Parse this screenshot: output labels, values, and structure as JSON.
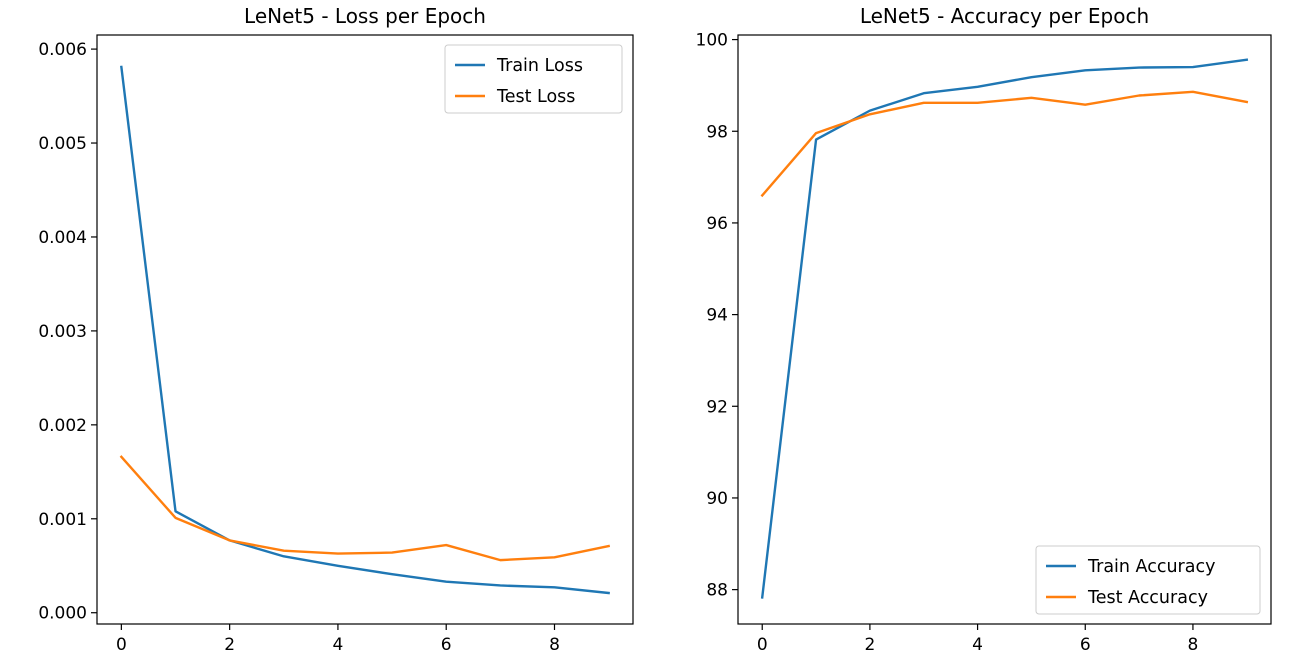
{
  "chart_data": [
    {
      "type": "line",
      "title": "LeNet5 - Loss per Epoch",
      "xlabel": "",
      "ylabel": "",
      "x": [
        0,
        1,
        2,
        3,
        4,
        5,
        6,
        7,
        8,
        9
      ],
      "xlim": [
        -0.45,
        9.45
      ],
      "ylim": [
        -0.00012,
        0.00615
      ],
      "xticks": [
        0,
        2,
        4,
        6,
        8
      ],
      "xtick_labels": [
        "0",
        "2",
        "4",
        "6",
        "8"
      ],
      "yticks": [
        0,
        0.001,
        0.002,
        0.003,
        0.004,
        0.005,
        0.006
      ],
      "ytick_labels": [
        "0.000",
        "0.001",
        "0.002",
        "0.003",
        "0.004",
        "0.005",
        "0.006"
      ],
      "grid": false,
      "legend_position": "top-right",
      "series": [
        {
          "name": "Train Loss",
          "color": "#1f77b4",
          "values": [
            0.00581,
            0.00108,
            0.00077,
            0.0006,
            0.0005,
            0.00041,
            0.00033,
            0.00029,
            0.00027,
            0.00021
          ]
        },
        {
          "name": "Test Loss",
          "color": "#ff7f0e",
          "values": [
            0.00166,
            0.00101,
            0.00077,
            0.00066,
            0.00063,
            0.00064,
            0.00072,
            0.00056,
            0.00059,
            0.00071
          ]
        }
      ]
    },
    {
      "type": "line",
      "title": "LeNet5 - Accuracy per Epoch",
      "xlabel": "",
      "ylabel": "",
      "x": [
        0,
        1,
        2,
        3,
        4,
        5,
        6,
        7,
        8,
        9
      ],
      "xlim": [
        -0.45,
        9.45
      ],
      "ylim": [
        87.25,
        100.1
      ],
      "xticks": [
        0,
        2,
        4,
        6,
        8
      ],
      "xtick_labels": [
        "0",
        "2",
        "4",
        "6",
        "8"
      ],
      "yticks": [
        88,
        90,
        92,
        94,
        96,
        98,
        100
      ],
      "ytick_labels": [
        "88",
        "90",
        "92",
        "94",
        "96",
        "98",
        "100"
      ],
      "grid": false,
      "legend_position": "bottom-right",
      "series": [
        {
          "name": "Train Accuracy",
          "color": "#1f77b4",
          "values": [
            87.83,
            97.82,
            98.45,
            98.83,
            98.97,
            99.18,
            99.33,
            99.39,
            99.4,
            99.56
          ]
        },
        {
          "name": "Test Accuracy",
          "color": "#ff7f0e",
          "values": [
            96.6,
            97.96,
            98.37,
            98.62,
            98.62,
            98.73,
            98.58,
            98.78,
            98.86,
            98.64
          ]
        }
      ]
    }
  ]
}
